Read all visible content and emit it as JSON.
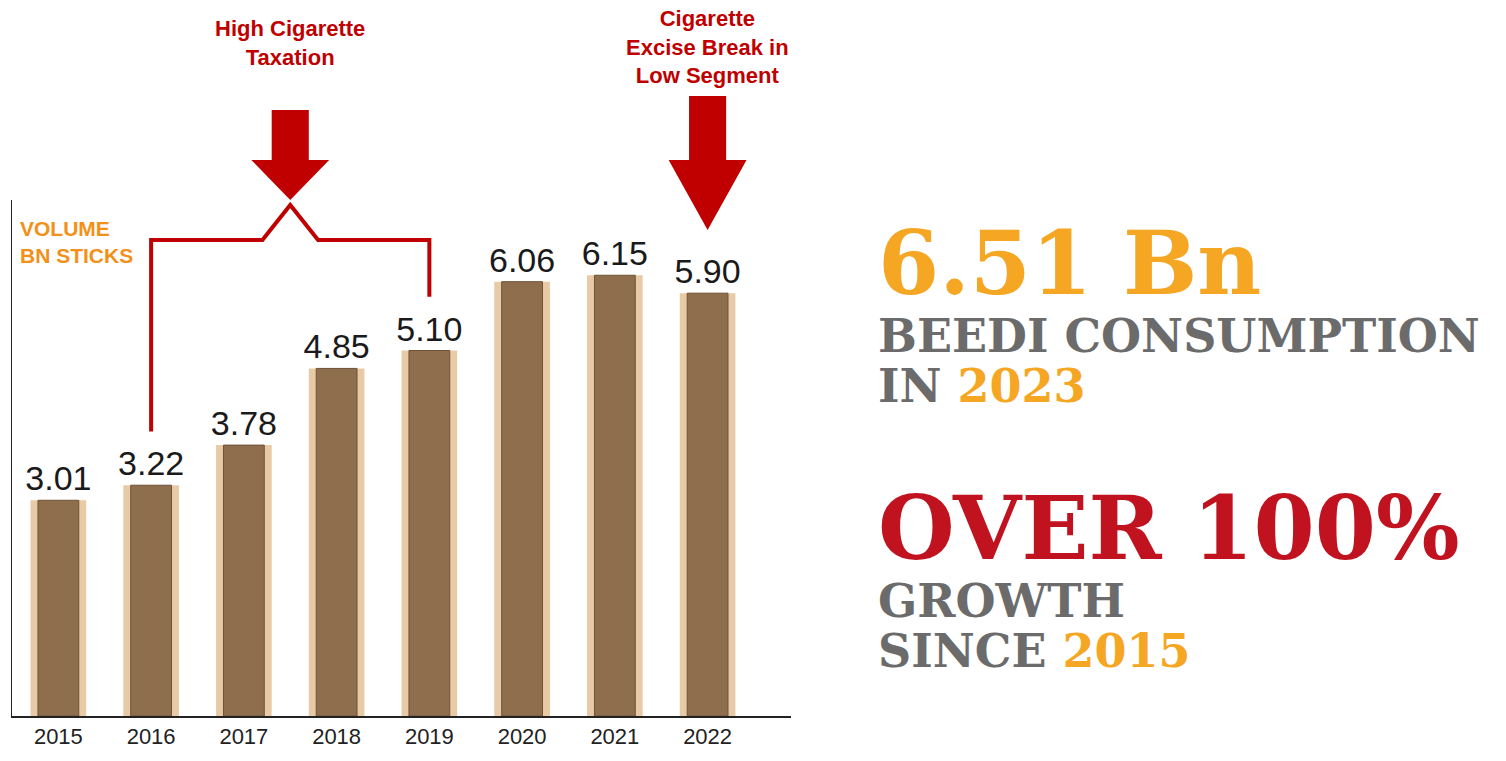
{
  "chart_data": {
    "type": "bar",
    "categories": [
      "2015",
      "2016",
      "2017",
      "2018",
      "2019",
      "2020",
      "2021",
      "2022"
    ],
    "values": [
      3.01,
      3.22,
      3.78,
      4.85,
      5.1,
      6.06,
      6.15,
      5.9
    ],
    "value_labels": [
      "3.01",
      "3.22",
      "3.78",
      "4.85",
      "5.10",
      "6.06",
      "6.15",
      "5.90"
    ],
    "data_labels": true,
    "color": "#8f6e4d",
    "ylabel": "VOLUME BN STICKS",
    "ylim": [
      0,
      7.2
    ],
    "grid": false,
    "tick_labels": "x",
    "annotations": [
      {
        "text": "High Cigarette Taxation",
        "from": "2016",
        "to": "2019"
      },
      {
        "text": "Cigarette Excise Break in Low Segment",
        "at": "2022"
      }
    ]
  },
  "callouts": [
    {
      "headline": "6.51 Bn",
      "caption": "BEEDI CONSUMPTION IN",
      "year": "2023"
    },
    {
      "headline": "OVER 100%",
      "caption": "GROWTH SINCE",
      "year": "2015"
    }
  ]
}
